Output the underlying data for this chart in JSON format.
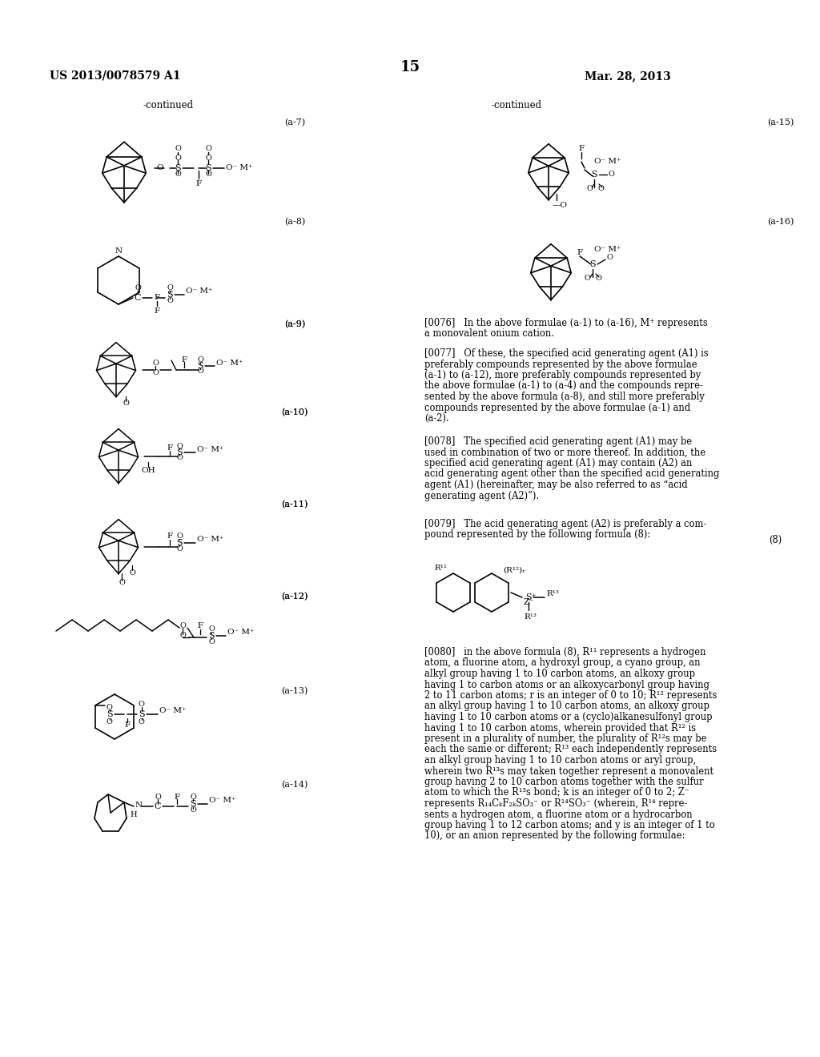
{
  "page_number": "15",
  "patent_number": "US 2013/0078579 A1",
  "date": "Mar. 28, 2013",
  "background_color": "#ffffff",
  "continued_left": "-continued",
  "continued_right": "-continued",
  "labels_left": [
    "(a-7)",
    "(a-8)",
    "(a-9)",
    "(a-10)",
    "(a-11)",
    "(a-12)",
    "(a-13)",
    "(a-14)"
  ],
  "labels_right": [
    "(a-15)",
    "(a-16)"
  ],
  "label_8": "(8)",
  "p76": "[0076]   In the above formulae (a-1) to (a-16), M⁺ represents\na monovalent onium cation.",
  "p77": "[0077]   Of these, the specified acid generating agent (A1) is\npreferably compounds represented by the above formulae\n(a-1) to (a-12), more preferably compounds represented by\nthe above formulae (a-1) to (a-4) and the compounds repre-\nsented by the above formula (a-8), and still more preferably\ncompounds represented by the above formulae (a-1) and\n(a-2).",
  "p78": "[0078]   The specified acid generating agent (A1) may be\nused in combination of two or more thereof. In addition, the\nspecified acid generating agent (A1) may contain (A2) an\nacid generating agent other than the specified acid generating\nagent (A1) (hereinafter, may be also referred to as “acid\ngenerating agent (A2)”).",
  "p79": "[0079]   The acid generating agent (A2) is preferably a com-\npound represented by the following formula (8):",
  "p80": "[0080]   in the above formula (8), R¹¹ represents a hydrogen\natom, a fluorine atom, a hydroxyl group, a cyano group, an\nalkyl group having 1 to 10 carbon atoms, an alkoxy group\nhaving 1 to carbon atoms or an alkoxycarbonyl group having\n2 to 11 carbon atoms; r is an integer of 0 to 10; R¹² represents\nan alkyl group having 1 to 10 carbon atoms, an alkoxy group\nhaving 1 to 10 carbon atoms or a (cyclo)alkanesulfonyl group\nhaving 1 to 10 carbon atoms, wherein provided that R¹² is\npresent in a plurality of number, the plurality of R¹²s may be\neach the same or different; R¹³ each independently represents\nan alkyl group having 1 to 10 carbon atoms or aryl group,\nwherein two R¹³s may taken together represent a monovalent\ngroup having 2 to 10 carbon atoms together with the sulfur\natom to which the R¹³s bond; k is an integer of 0 to 2; Z⁻\nrepresents R₁₄CₖF₂ₖSO₃⁻ or R¹⁴SO₃⁻ (wherein, R¹⁴ repre-\nsents a hydrogen atom, a fluorine atom or a hydrocarbon\ngroup having 1 to 12 carbon atoms; and y is an integer of 1 to\n10), or an anion represented by the following formulae:"
}
